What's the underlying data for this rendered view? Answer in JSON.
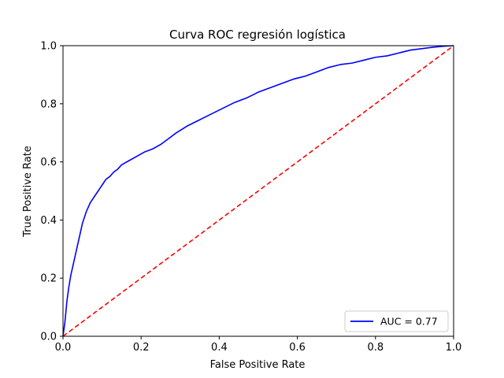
{
  "chart_data": {
    "type": "line",
    "title": "Curva ROC regresión logística",
    "xlabel": "False Positive Rate",
    "ylabel": "True Positive Rate",
    "xlim": [
      0,
      1
    ],
    "ylim": [
      0,
      1
    ],
    "xticks": [
      "0.0",
      "0.2",
      "0.4",
      "0.6",
      "0.8",
      "1.0"
    ],
    "yticks": [
      "0.0",
      "0.2",
      "0.4",
      "0.6",
      "0.8",
      "1.0"
    ],
    "grid": false,
    "legend_position": "lower-right",
    "series": [
      {
        "name": "AUC = 0.77",
        "color": "#0000ff",
        "style": "solid",
        "x": [
          0.0,
          0.005,
          0.01,
          0.015,
          0.02,
          0.025,
          0.03,
          0.035,
          0.04,
          0.045,
          0.05,
          0.055,
          0.06,
          0.065,
          0.07,
          0.08,
          0.09,
          0.1,
          0.11,
          0.12,
          0.13,
          0.14,
          0.15,
          0.17,
          0.19,
          0.21,
          0.23,
          0.25,
          0.27,
          0.29,
          0.32,
          0.35,
          0.38,
          0.41,
          0.44,
          0.47,
          0.5,
          0.53,
          0.56,
          0.59,
          0.62,
          0.65,
          0.68,
          0.71,
          0.74,
          0.77,
          0.8,
          0.83,
          0.86,
          0.89,
          0.92,
          0.95,
          0.975,
          1.0
        ],
        "y": [
          0.0,
          0.05,
          0.12,
          0.17,
          0.21,
          0.24,
          0.27,
          0.3,
          0.33,
          0.36,
          0.39,
          0.41,
          0.43,
          0.445,
          0.46,
          0.48,
          0.5,
          0.52,
          0.54,
          0.55,
          0.565,
          0.575,
          0.59,
          0.605,
          0.62,
          0.635,
          0.645,
          0.66,
          0.68,
          0.7,
          0.725,
          0.745,
          0.765,
          0.785,
          0.805,
          0.82,
          0.84,
          0.855,
          0.87,
          0.885,
          0.895,
          0.91,
          0.925,
          0.935,
          0.94,
          0.95,
          0.96,
          0.965,
          0.975,
          0.985,
          0.99,
          0.995,
          0.998,
          1.0
        ]
      },
      {
        "name": "",
        "color": "#ff0000",
        "style": "dashed",
        "x": [
          0,
          1
        ],
        "y": [
          0,
          1
        ]
      }
    ],
    "legend": [
      {
        "label": "AUC = 0.77",
        "color": "#0000ff"
      }
    ]
  }
}
